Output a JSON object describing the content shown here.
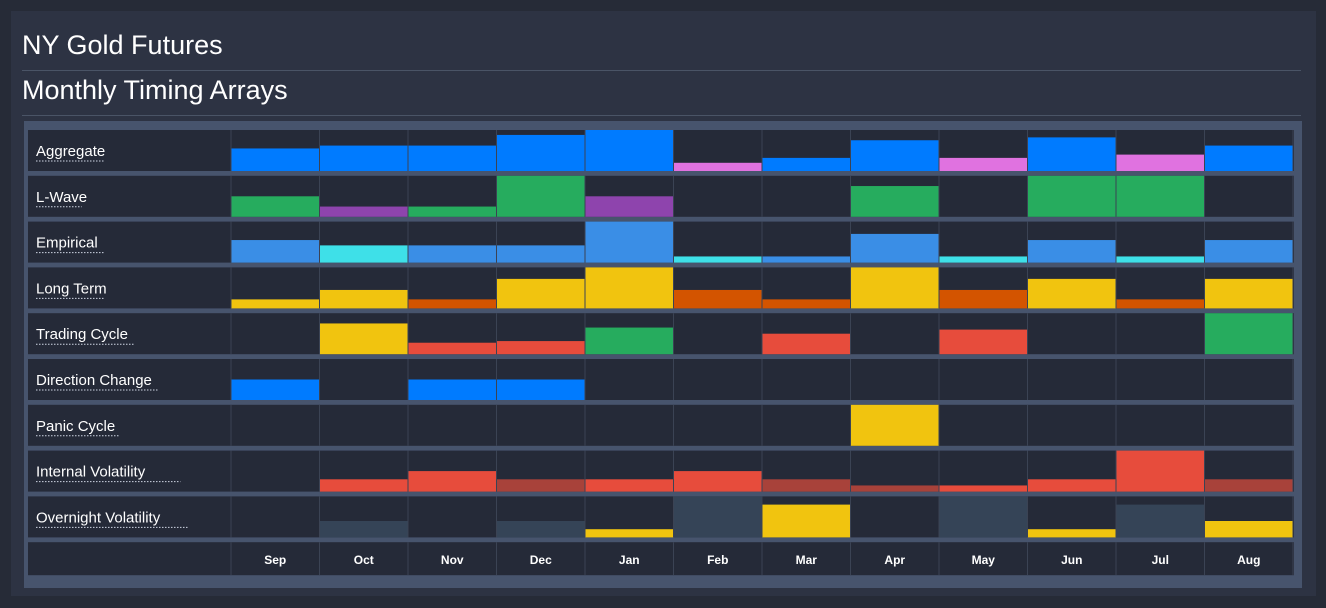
{
  "header": {
    "title": "NY Gold Futures",
    "subtitle": "Monthly Timing Arrays"
  },
  "chart_data": {
    "type": "heatmap",
    "title": "Monthly Timing Arrays",
    "categories": [
      "Sep",
      "Oct",
      "Nov",
      "Dec",
      "Jan",
      "Feb",
      "Mar",
      "Apr",
      "May",
      "Jun",
      "Jul",
      "Aug"
    ],
    "rows": [
      {
        "name": "Aggregate",
        "values": [
          0.55,
          0.62,
          0.62,
          0.88,
          1.0,
          0.2,
          0.32,
          0.75,
          0.32,
          0.82,
          0.4,
          0.62
        ],
        "colors": [
          "#007bff",
          "#007bff",
          "#007bff",
          "#007bff",
          "#007bff",
          "#e072e0",
          "#007bff",
          "#007bff",
          "#e072e0",
          "#007bff",
          "#e072e0",
          "#007bff"
        ]
      },
      {
        "name": "L-Wave",
        "values": [
          0.5,
          0.25,
          0.25,
          1.0,
          0.5,
          0,
          0,
          0.75,
          0,
          1.0,
          1.0,
          0
        ],
        "colors": [
          "#26ac5e",
          "#8e44ad",
          "#26ac5e",
          "#26ac5e",
          "#8e44ad",
          "",
          "",
          "#26ac5e",
          "",
          "#26ac5e",
          "#26ac5e",
          ""
        ]
      },
      {
        "name": "Empirical",
        "values": [
          0.55,
          0.42,
          0.42,
          0.42,
          1.0,
          0.15,
          0.15,
          0.7,
          0.15,
          0.55,
          0.15,
          0.55
        ],
        "colors": [
          "#3a8ee6",
          "#3ee0e8",
          "#3a8ee6",
          "#3a8ee6",
          "#3a8ee6",
          "#3ee0e8",
          "#3a8ee6",
          "#3a8ee6",
          "#3ee0e8",
          "#3a8ee6",
          "#3ee0e8",
          "#3a8ee6"
        ]
      },
      {
        "name": "Long Term",
        "values": [
          0.22,
          0.45,
          0.22,
          0.72,
          1.0,
          0.45,
          0.22,
          1.0,
          0.45,
          0.72,
          0.22,
          0.72
        ],
        "colors": [
          "#f1c40f",
          "#f1c40f",
          "#d35400",
          "#f1c40f",
          "#f1c40f",
          "#d35400",
          "#d35400",
          "#f1c40f",
          "#d35400",
          "#f1c40f",
          "#d35400",
          "#f1c40f"
        ]
      },
      {
        "name": "Trading Cycle",
        "values": [
          0,
          0.75,
          0.28,
          0.32,
          0.65,
          0,
          0.5,
          0,
          0.6,
          0,
          0,
          1.0
        ],
        "colors": [
          "",
          "#f1c40f",
          "#e74c3c",
          "#e74c3c",
          "#26ac5e",
          "",
          "#e74c3c",
          "",
          "#e74c3c",
          "",
          "",
          "#26ac5e"
        ]
      },
      {
        "name": "Direction Change",
        "values": [
          0.5,
          0,
          0.5,
          0.5,
          0,
          0,
          0,
          0,
          0,
          0,
          0,
          0
        ],
        "colors": [
          "#007bff",
          "",
          "#007bff",
          "#007bff",
          "",
          "",
          "",
          "",
          "",
          "",
          "",
          ""
        ]
      },
      {
        "name": "Panic Cycle",
        "values": [
          0,
          0,
          0,
          0,
          0,
          0,
          0,
          1.0,
          0,
          0,
          0,
          0
        ],
        "colors": [
          "",
          "",
          "",
          "",
          "",
          "",
          "",
          "#f1c40f",
          "",
          "",
          "",
          ""
        ]
      },
      {
        "name": "Internal Volatility",
        "values": [
          0,
          0.3,
          0.5,
          0.3,
          0.3,
          0.5,
          0.3,
          0.15,
          0.15,
          0.3,
          1.0,
          0.3
        ],
        "colors": [
          "",
          "#e74c3c",
          "#e74c3c",
          "#a8423a",
          "#e74c3c",
          "#e74c3c",
          "#a8423a",
          "#a8423a",
          "#e74c3c",
          "#e74c3c",
          "#e74c3c",
          "#a8423a"
        ]
      },
      {
        "name": "Overnight Volatility",
        "values": [
          0,
          0.4,
          0,
          0.4,
          0.2,
          1.0,
          0.8,
          0,
          1.0,
          0.2,
          0.8,
          0.4
        ],
        "colors": [
          "",
          "#354457",
          "",
          "#354457",
          "#f1c40f",
          "#354457",
          "#f1c40f",
          "",
          "#354457",
          "#f1c40f",
          "#354457",
          "#f1c40f"
        ]
      }
    ],
    "legend": "none"
  }
}
